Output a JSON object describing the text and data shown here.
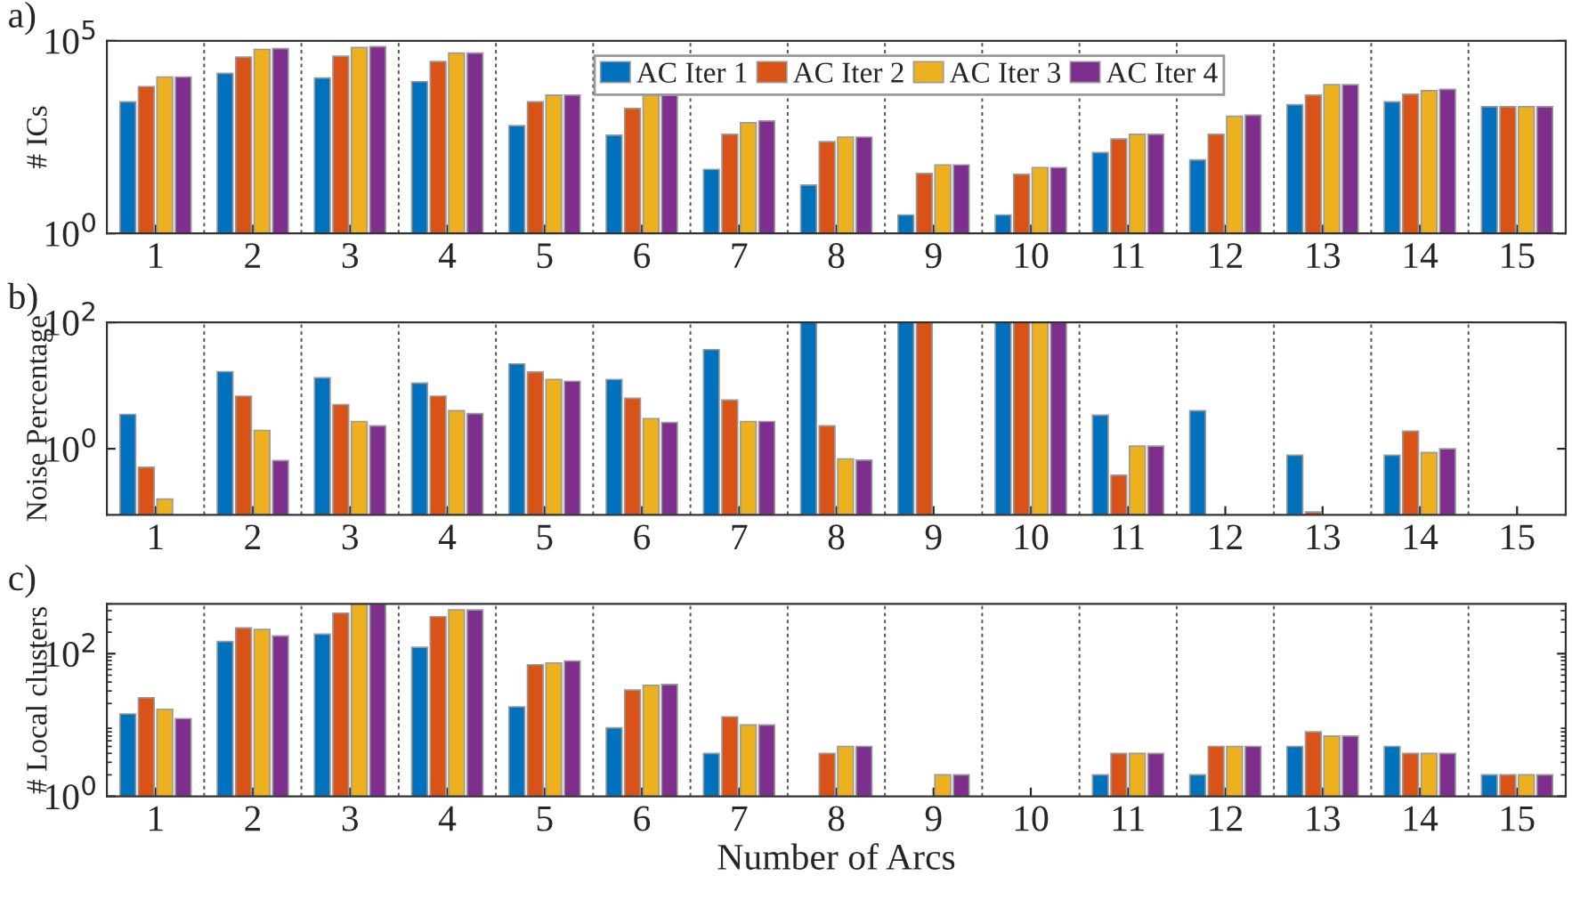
{
  "chart_data": [
    {
      "type": "bar",
      "categories": [
        "1",
        "2",
        "3",
        "4",
        "5",
        "6",
        "7",
        "8",
        "9",
        "10",
        "11",
        "12",
        "13",
        "14",
        "15"
      ],
      "ylabel": "# ICs",
      "log": true,
      "ylim": [
        1,
        100000
      ],
      "yticks": [
        {
          "value": 1,
          "label": "10$^{0}$"
        },
        {
          "value": 100000,
          "label": "10$^{5}$"
        }
      ],
      "grid": "x",
      "legend": "top",
      "annotations": [
        "a)"
      ],
      "series": [
        {
          "name": "AC Iter 1",
          "color": "#0072bd",
          "values": [
            2600,
            14400,
            10800,
            8700,
            630,
            355,
            46,
            18,
            3,
            3,
            126,
            81,
            2200,
            2600,
            1950
          ]
        },
        {
          "name": "AC Iter 2",
          "color": "#d95319",
          "values": [
            6500,
            38000,
            40000,
            29000,
            2600,
            1750,
            375,
            240,
            36,
            34,
            282,
            375,
            3900,
            4100,
            1950
          ]
        },
        {
          "name": "AC Iter 3",
          "color": "#edb120",
          "values": [
            11500,
            60000,
            67000,
            48000,
            3900,
            3900,
            750,
            316,
            60,
            51,
            375,
            1100,
            7300,
            5100,
            1950
          ]
        },
        {
          "name": "AC Iter 4",
          "color": "#7e2f8e",
          "values": [
            11500,
            63000,
            71000,
            48000,
            3900,
            3900,
            830,
            316,
            60,
            51,
            375,
            1170,
            7300,
            5500,
            1950
          ]
        }
      ]
    },
    {
      "type": "bar",
      "categories": [
        "1",
        "2",
        "3",
        "4",
        "5",
        "6",
        "7",
        "8",
        "9",
        "10",
        "11",
        "12",
        "13",
        "14",
        "15"
      ],
      "ylabel": "Noise Percentage",
      "log": true,
      "ylim": [
        0.09,
        100
      ],
      "yticks": [
        {
          "value": 1,
          "label": "10$^{0}$"
        },
        {
          "value": 100,
          "label": "10$^{2}$"
        }
      ],
      "grid": "x",
      "annotations": [
        "b)"
      ],
      "series": [
        {
          "color": "#0072bd",
          "values": [
            3.5,
            16.6,
            13.3,
            10.9,
            22,
            12.5,
            37,
            100,
            100,
            100,
            3.4,
            4.0,
            0.79,
            0.79,
            null
          ]
        },
        {
          "color": "#d95319",
          "values": [
            0.51,
            6.8,
            5.0,
            6.8,
            16.4,
            6.3,
            5.9,
            2.3,
            100,
            100,
            0.38,
            null,
            0.1,
            1.9,
            null
          ]
        },
        {
          "color": "#edb120",
          "values": [
            0.16,
            1.95,
            2.7,
            4.0,
            12.5,
            3.0,
            2.7,
            0.69,
            null,
            100,
            1.1,
            null,
            null,
            0.87,
            null
          ]
        },
        {
          "color": "#7e2f8e",
          "values": [
            null,
            0.65,
            2.3,
            3.6,
            11.7,
            2.6,
            2.7,
            0.66,
            null,
            100,
            1.1,
            null,
            null,
            1.0,
            null
          ]
        }
      ]
    },
    {
      "type": "bar",
      "categories": [
        "1",
        "2",
        "3",
        "4",
        "5",
        "6",
        "7",
        "8",
        "9",
        "10",
        "11",
        "12",
        "13",
        "14",
        "15"
      ],
      "xlabel": "Number of Arcs",
      "ylabel": "# Local clusters",
      "log": true,
      "ylim": [
        1,
        500
      ],
      "yticks": [
        {
          "value": 1,
          "label": "10$^{0}$"
        },
        {
          "value": 100,
          "label": "10$^{2}$"
        }
      ],
      "grid": "x",
      "annotations": [
        "c)"
      ],
      "series": [
        {
          "color": "#0072bd",
          "values": [
            14.3,
            148,
            188,
            123,
            18,
            9.1,
            4,
            null,
            null,
            null,
            2,
            2,
            5,
            5,
            2
          ]
        },
        {
          "color": "#d95319",
          "values": [
            24,
            230,
            370,
            330,
            70,
            31,
            13,
            4,
            null,
            null,
            4,
            5,
            8,
            4,
            2
          ]
        },
        {
          "color": "#edb120",
          "values": [
            16.6,
            218,
            500,
            410,
            74,
            36,
            10,
            5,
            2,
            null,
            4,
            5,
            7,
            4,
            2
          ]
        },
        {
          "color": "#7e2f8e",
          "values": [
            12.3,
            177,
            500,
            410,
            79,
            37,
            10,
            5,
            2,
            null,
            4,
            5,
            7,
            4,
            2
          ]
        }
      ]
    }
  ]
}
